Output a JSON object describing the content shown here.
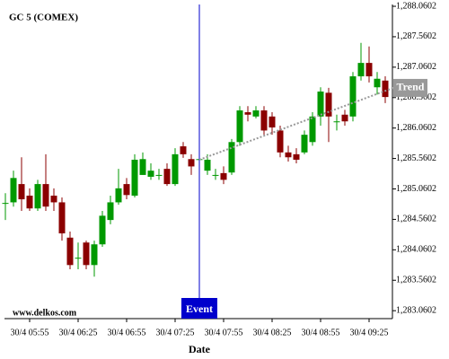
{
  "chart_data": {
    "type": "candlestick",
    "title": "GC 5 (COMEX)",
    "x_label": "Date",
    "watermark": "www.delkos.com",
    "up_color": "#009900",
    "down_color": "#8b0000",
    "categories": [
      null,
      null,
      null,
      "30/4 05:55",
      null,
      null,
      null,
      null,
      null,
      "30/4 06:25",
      null,
      null,
      null,
      null,
      null,
      "30/4 06:55",
      null,
      null,
      null,
      null,
      null,
      "30/4 07:25",
      null,
      null,
      null,
      null,
      null,
      "30/4 07:55",
      null,
      null,
      null,
      null,
      null,
      "30/4 08:25",
      null,
      null,
      null,
      null,
      null,
      "30/4 08:55",
      null,
      null,
      null,
      null,
      null,
      "30/4 09:25",
      null,
      null
    ],
    "open": [
      1284.83,
      1284.84,
      1285.14,
      1284.95,
      1284.74,
      1285.14,
      1284.95,
      1284.84,
      1284.26,
      1283.93,
      1284.18,
      1283.81,
      1284.15,
      1284.55,
      1284.84,
      1285.14,
      1284.95,
      1285.29,
      1285.26,
      1285.29,
      1285.39,
      1285.14,
      1285.76,
      1285.55,
      1285.55,
      1285.36,
      1285.29,
      1285.32,
      1285.33,
      1285.83,
      1286.32,
      1286.25,
      1286.35,
      1286.25,
      1286.02,
      1285.66,
      1285.63,
      1285.66,
      1285.83,
      1286.25,
      1286.64,
      1286.17,
      1286.28,
      1286.25,
      1286.91,
      1287.13,
      1286.73,
      1286.84
    ],
    "high": [
      1284.99,
      1285.36,
      1285.58,
      1285.07,
      1285.21,
      1285.63,
      1285.07,
      1284.92,
      1284.36,
      1284.18,
      1284.21,
      1284.21,
      1284.7,
      1284.95,
      1285.39,
      1285.24,
      1285.63,
      1285.66,
      1285.48,
      1285.39,
      1285.48,
      1285.73,
      1285.83,
      1285.63,
      1285.63,
      1285.63,
      1285.39,
      1285.43,
      1285.88,
      1286.42,
      1286.42,
      1286.42,
      1286.42,
      1286.32,
      1286.1,
      1285.77,
      1285.73,
      1286.02,
      1286.32,
      1286.73,
      1286.72,
      1286.28,
      1286.36,
      1286.98,
      1287.46,
      1287.4,
      1286.98,
      1286.91
    ],
    "low": [
      1284.55,
      1284.77,
      1284.7,
      1284.7,
      1284.7,
      1284.7,
      1284.7,
      1284.21,
      1283.74,
      1283.74,
      1283.74,
      1283.62,
      1284.11,
      1284.48,
      1284.8,
      1284.89,
      1284.92,
      1285.29,
      1285.21,
      1285.21,
      1285.11,
      1285.11,
      1285.57,
      1285.29,
      1285.43,
      1285.29,
      1285.21,
      1285.14,
      1285.29,
      1285.77,
      1286.17,
      1286.22,
      1285.95,
      1285.95,
      1285.58,
      1285.51,
      1285.48,
      1285.63,
      1285.77,
      1286.1,
      1285.83,
      1286.02,
      1286.1,
      1286.17,
      1286.84,
      1286.81,
      1286.61,
      1286.47
    ],
    "close": [
      1284.83,
      1285.24,
      1284.89,
      1284.74,
      1285.14,
      1284.77,
      1284.84,
      1284.33,
      1283.81,
      1283.93,
      1283.81,
      1284.15,
      1284.62,
      1284.84,
      1285.07,
      1284.96,
      1285.54,
      1285.55,
      1285.36,
      1285.29,
      1285.14,
      1285.63,
      1285.63,
      1285.43,
      1285.55,
      1285.54,
      1285.29,
      1285.21,
      1285.83,
      1286.35,
      1286.28,
      1286.35,
      1286.02,
      1286.07,
      1285.66,
      1285.58,
      1285.54,
      1285.95,
      1286.25,
      1286.66,
      1286.25,
      1286.17,
      1286.17,
      1286.91,
      1287.13,
      1286.91,
      1286.87,
      1286.57
    ],
    "ylim": [
      1282.93,
      1288.09
    ],
    "yticks": [
      {
        "value": 1288.0602,
        "label": "1,288.0602"
      },
      {
        "value": 1287.5602,
        "label": "1,287.5602"
      },
      {
        "value": 1287.0602,
        "label": "1,287.0602"
      },
      {
        "value": 1286.5602,
        "label": "1,286.5602"
      },
      {
        "value": 1286.0602,
        "label": "1,286.0602"
      },
      {
        "value": 1285.5602,
        "label": "1,285.5602"
      },
      {
        "value": 1285.0602,
        "label": "1,285.0602"
      },
      {
        "value": 1284.5602,
        "label": "1,284.5602"
      },
      {
        "value": 1284.0602,
        "label": "1,284.0602"
      },
      {
        "value": 1283.5602,
        "label": "1,283.5602"
      },
      {
        "value": 1283.0602,
        "label": "1,283.0602"
      }
    ],
    "event": {
      "label": "Event",
      "index": 24,
      "color": "#0000cc"
    },
    "trend": {
      "label": "Trend",
      "start": [
        24,
        1285.54
      ],
      "end": [
        48,
        1286.72
      ],
      "color": "#999999"
    }
  }
}
